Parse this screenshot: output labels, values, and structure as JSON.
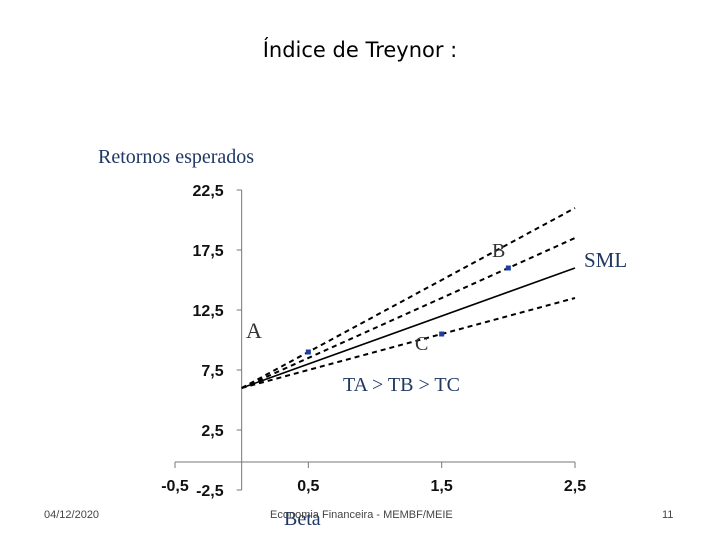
{
  "slide": {
    "title": "Índice de Treynor :",
    "footer_date": "04/12/2020",
    "footer_center": "Economia Financeira - MEMBF/MEIE",
    "page_number": "11"
  },
  "chart_data": {
    "type": "line",
    "ylabel": "Retornos esperados",
    "xlabel": "Beta",
    "xlim": [
      -0.5,
      2.5
    ],
    "ylim": [
      -2.5,
      22.5
    ],
    "x_ticks": [
      "-0,5",
      "0,5",
      "1,5",
      "2,5"
    ],
    "y_ticks": [
      "-2,5",
      "2,5",
      "7,5",
      "12,5",
      "17,5",
      "22,5"
    ],
    "series": [
      {
        "name": "SML",
        "style": "solid",
        "x": [
          0,
          2.5
        ],
        "y": [
          6,
          16
        ]
      },
      {
        "style": "dashed",
        "x": [
          0,
          2.5
        ],
        "y": [
          6,
          21
        ]
      },
      {
        "style": "dashed",
        "x": [
          0,
          2.5
        ],
        "y": [
          6,
          18.5
        ]
      },
      {
        "style": "dashed",
        "x": [
          0,
          2.5
        ],
        "y": [
          6,
          13.5
        ]
      }
    ],
    "points": [
      {
        "label": "A",
        "x": 0.5,
        "y": 9
      },
      {
        "label": "B",
        "x": 2.0,
        "y": 16
      },
      {
        "label": "C",
        "x": 1.5,
        "y": 10.5
      }
    ],
    "annotation": {
      "ta": "TA",
      "gt1": ">",
      "tb": "TB",
      "gt2": ">",
      "tc": "TC"
    },
    "colors": {
      "points": "#1f3f9f",
      "lines": "#000000",
      "axis": "#777777"
    }
  }
}
